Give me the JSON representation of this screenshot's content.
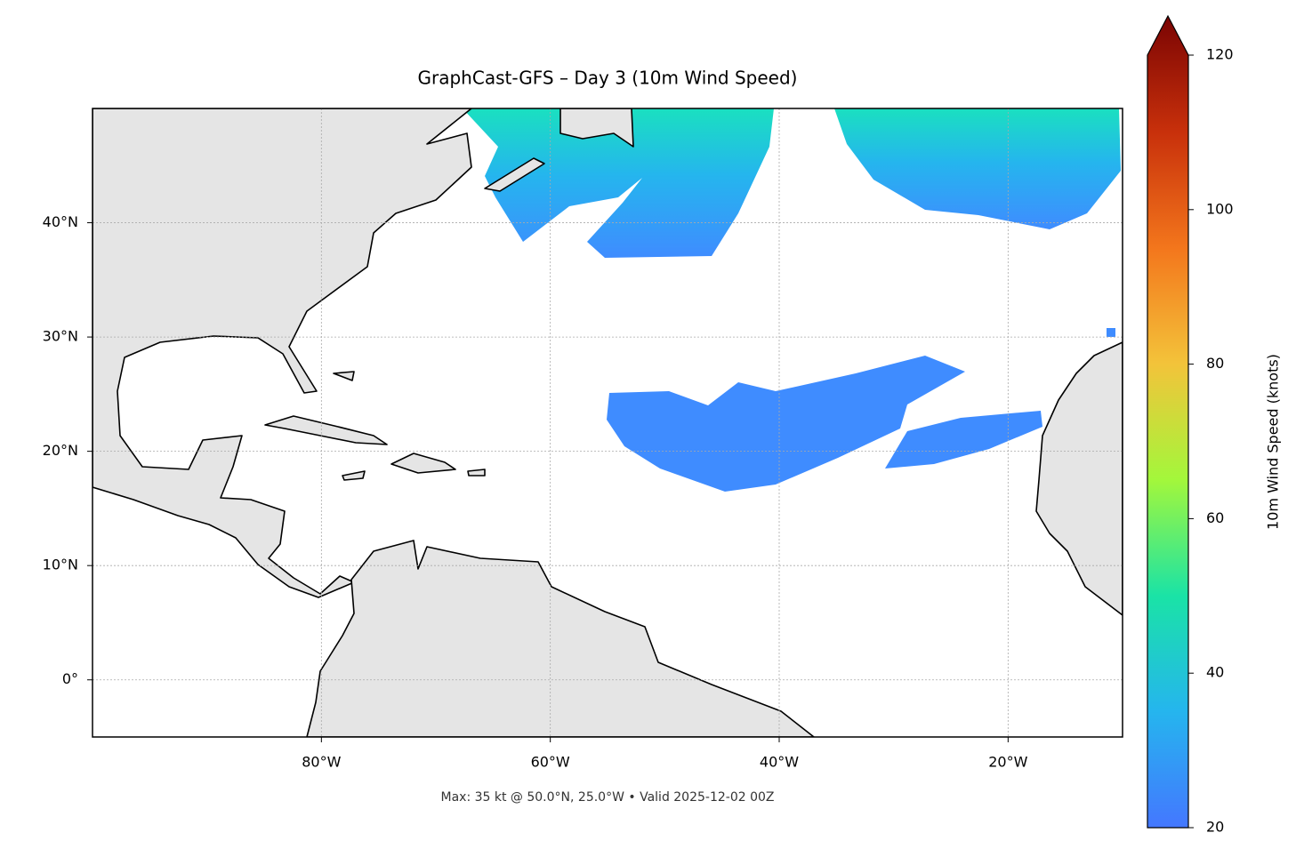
{
  "chart_data": {
    "type": "map",
    "title": "GraphCast-GFS – Day 3 (10m Wind Speed)",
    "subtitle": "Max: 35 kt @ 50.0°N, 25.0°W • Valid 2025-12-02 00Z",
    "xlim": [
      -100,
      -10
    ],
    "ylim": [
      -5,
      50
    ],
    "xticks": [
      {
        "value": -80,
        "label": "80°W"
      },
      {
        "value": -60,
        "label": "60°W"
      },
      {
        "value": -40,
        "label": "40°W"
      },
      {
        "value": -20,
        "label": "20°W"
      }
    ],
    "yticks": [
      {
        "value": 0,
        "label": "0°"
      },
      {
        "value": 10,
        "label": "10°N"
      },
      {
        "value": 20,
        "label": "20°N"
      },
      {
        "value": 30,
        "label": "30°N"
      },
      {
        "value": 40,
        "label": "40°N"
      }
    ],
    "grid": true,
    "colorbar": {
      "label": "10m Wind Speed (knots)",
      "lim": [
        20,
        120
      ],
      "ticks": [
        20,
        40,
        60,
        80,
        100,
        120
      ],
      "colormap": [
        "#4477ff",
        "#25b5ee",
        "#1ae3a6",
        "#a3f73b",
        "#f3c33a",
        "#f3761c",
        "#c8300b",
        "#7a0403"
      ]
    }
  }
}
